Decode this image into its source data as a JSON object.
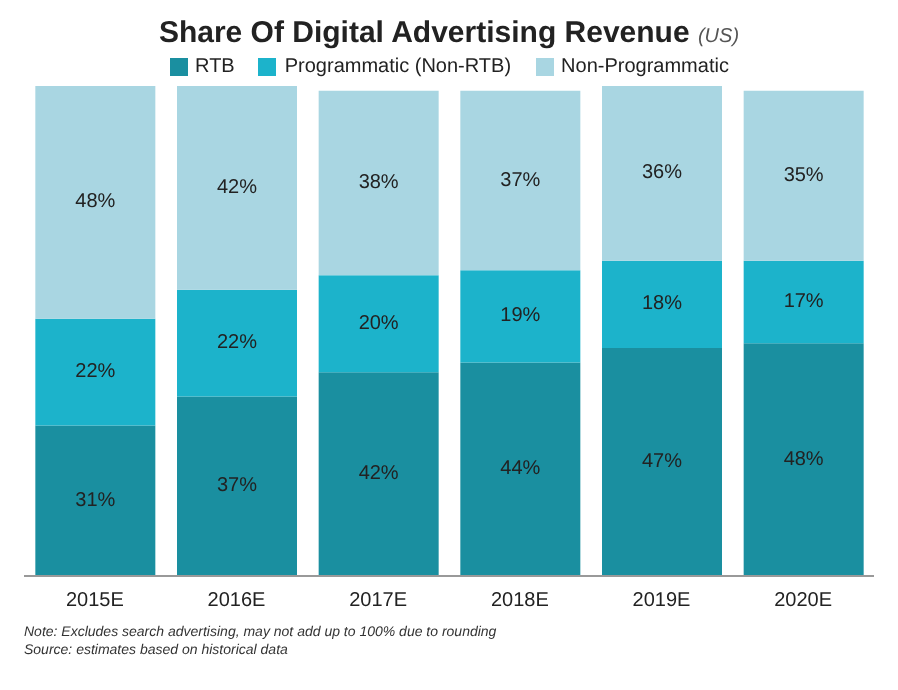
{
  "chart_data": {
    "type": "bar",
    "stacked": true,
    "title": "Share Of Digital Advertising Revenue",
    "subtitle": "(US)",
    "categories": [
      "2015E",
      "2016E",
      "2017E",
      "2018E",
      "2019E",
      "2020E"
    ],
    "series": [
      {
        "name": "RTB",
        "color": "#1a8fa0",
        "values": [
          31,
          37,
          42,
          44,
          47,
          48
        ],
        "value_labels": [
          "31%",
          "37%",
          "42%",
          "44%",
          "47%",
          "48%"
        ]
      },
      {
        "name": "Programmatic (Non-RTB)",
        "color": "#1cb3cb",
        "values": [
          22,
          22,
          20,
          19,
          18,
          17
        ],
        "value_labels": [
          "22%",
          "22%",
          "20%",
          "19%",
          "18%",
          "17%"
        ]
      },
      {
        "name": "Non-Programmatic",
        "color": "#a9d6e2",
        "values": [
          48,
          42,
          38,
          37,
          36,
          35
        ],
        "value_labels": [
          "48%",
          "42%",
          "38%",
          "37%",
          "36%",
          "35%"
        ]
      }
    ],
    "legend": "top",
    "annotations": [
      "Note: Excludes search advertising, may not add up to 100% due to rounding",
      "Source: estimates based on historical data"
    ]
  }
}
